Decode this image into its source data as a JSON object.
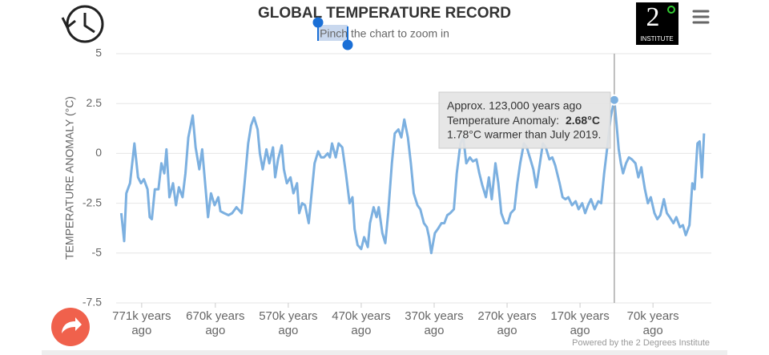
{
  "chart_data": {
    "type": "line",
    "title": "GLOBAL TEMPERATURE RECORD",
    "subtitle": "Pinch the chart to zoom in",
    "y_label": "TEMPERATURE ANOMALY (°C)",
    "credit": "Powered by the 2 Degrees Institute",
    "logo": {
      "numeral": "2",
      "text": "INSTITUTE"
    },
    "tooltip": {
      "line1": "Approx. 123,000 years ago",
      "line2_label": "Temperature Anomaly: ",
      "line2_value": "2.68°C",
      "line3": "1.78°C warmer than July 2019."
    },
    "xlim": [
      806,
      -10
    ],
    "xticks": [
      {
        "value": 771,
        "label": "771k years ago"
      },
      {
        "value": 670,
        "label": "670k years ago"
      },
      {
        "value": 570,
        "label": "570k years ago"
      },
      {
        "value": 470,
        "label": "470k years ago"
      },
      {
        "value": 370,
        "label": "370k years ago"
      },
      {
        "value": 270,
        "label": "270k years ago"
      },
      {
        "value": 170,
        "label": "170k years ago"
      },
      {
        "value": 70,
        "label": "70k years ago"
      }
    ],
    "ylim": [
      -7.5,
      5
    ],
    "yticks": [
      5,
      2.5,
      0,
      -2.5,
      -5,
      -7.5
    ],
    "grid": true,
    "series": [
      {
        "color": "#7cb0e0",
        "x": [
          799,
          795,
          792,
          787,
          781,
          776,
          772,
          768,
          763,
          760,
          757,
          753,
          748,
          744,
          740,
          737,
          733,
          728,
          724,
          720,
          715,
          711,
          707,
          701,
          697,
          692,
          688,
          684,
          680,
          676,
          671,
          666,
          663,
          658,
          652,
          647,
          641,
          634,
          630,
          625,
          621,
          617,
          612,
          609,
          605,
          600,
          596,
          591,
          588,
          584,
          579,
          576,
          572,
          567,
          563,
          558,
          555,
          551,
          547,
          542,
          538,
          534,
          529,
          525,
          521,
          516,
          513,
          510,
          505,
          501,
          496,
          491,
          486,
          482,
          479,
          475,
          470,
          466,
          461,
          458,
          453,
          449,
          446,
          441,
          437,
          433,
          428,
          424,
          419,
          415,
          411,
          406,
          402,
          398,
          393,
          389,
          384,
          380,
          377,
          374,
          369,
          365,
          360,
          356,
          352,
          348,
          343,
          339,
          334,
          330,
          326,
          321,
          317,
          312,
          308,
          304,
          299,
          295,
          291,
          286,
          282,
          278,
          273,
          269,
          265,
          260,
          256,
          252,
          247,
          243,
          238,
          234,
          230,
          225,
          221,
          217,
          212,
          208,
          204,
          198,
          194,
          190,
          186,
          181,
          176,
          172,
          167,
          163,
          159,
          155,
          150,
          145,
          141,
          137,
          132,
          128,
          123,
          120,
          117,
          114,
          111,
          107,
          103,
          99,
          94,
          90,
          86,
          81,
          77,
          73,
          68,
          64,
          60,
          55,
          51,
          47,
          42,
          38,
          33,
          29,
          25,
          20,
          16,
          13,
          9,
          6,
          3,
          0
        ],
        "values": [
          -3,
          -4.4,
          -2,
          -1.5,
          0.5,
          -1.2,
          -1.5,
          -1.3,
          -1.8,
          -3.2,
          -3.3,
          -1.8,
          -1.8,
          -0.5,
          -1,
          0.2,
          -2.2,
          -1.5,
          -2.6,
          -1.7,
          -2.2,
          -1,
          0.8,
          1.9,
          0.3,
          -0.8,
          0.2,
          -1.5,
          -3.2,
          -2,
          -2.6,
          -2.2,
          -2.9,
          -3,
          -3.1,
          -3,
          -2.7,
          -3,
          -1.5,
          0.5,
          1.4,
          1.8,
          1.2,
          0,
          -0.8,
          0.2,
          -0.5,
          0.3,
          -1.2,
          -0.3,
          0.4,
          -0.8,
          -1.5,
          -1.2,
          -2,
          -1.5,
          -3,
          -2.5,
          -2.6,
          -3.5,
          -2,
          -0.5,
          0.1,
          -0.2,
          -0.2,
          0,
          -0.2,
          0.5,
          -0.2,
          0.5,
          0.3,
          -1,
          -2.5,
          -2.2,
          -3.8,
          -4.6,
          -4.8,
          -4.2,
          -4.7,
          -3.5,
          -2.7,
          -3.2,
          -2.7,
          -4,
          -4.5,
          -3,
          -0.5,
          1,
          1.2,
          0.8,
          1.7,
          0.8,
          -0.5,
          -2,
          -2.6,
          -2.8,
          -3.5,
          -3.7,
          -4.2,
          -5,
          -4,
          -3.8,
          -3.5,
          -3.5,
          -3.1,
          -3,
          -2.8,
          -1,
          0.5,
          0.8,
          -0.5,
          -0.2,
          -0.4,
          -0.3,
          -1,
          -1.6,
          -2.2,
          -1.2,
          -2.3,
          -0.5,
          -1.5,
          -3,
          -3.5,
          -3.5,
          -3,
          -2.8,
          -1.5,
          -0.5,
          0.5,
          0.3,
          -0.3,
          -0.8,
          -1.7,
          -0.5,
          0.5,
          0.3,
          -0.3,
          -0.2,
          -0.6,
          -1.5,
          -2.2,
          -2.3,
          -2.2,
          -2.6,
          -2.4,
          -2.8,
          -2.5,
          -3,
          -2.6,
          -2.3,
          -2.8,
          -2.4,
          -2.5,
          -1,
          0.5,
          1.8,
          2.68,
          1.5,
          0.2,
          -0.5,
          -1,
          -0.5,
          -0.2,
          -0.3,
          -0.5,
          -1.2,
          -0.7,
          -1.8,
          -2.5,
          -2.2,
          -3,
          -3.3,
          -3.1,
          -2.3,
          -3,
          -3.2,
          -3.5,
          -3.2,
          -3.7,
          -3.6,
          -4.1,
          -3.6,
          -1.5,
          -1.8,
          0.5,
          0.6,
          -1.2,
          1
        ]
      }
    ]
  }
}
